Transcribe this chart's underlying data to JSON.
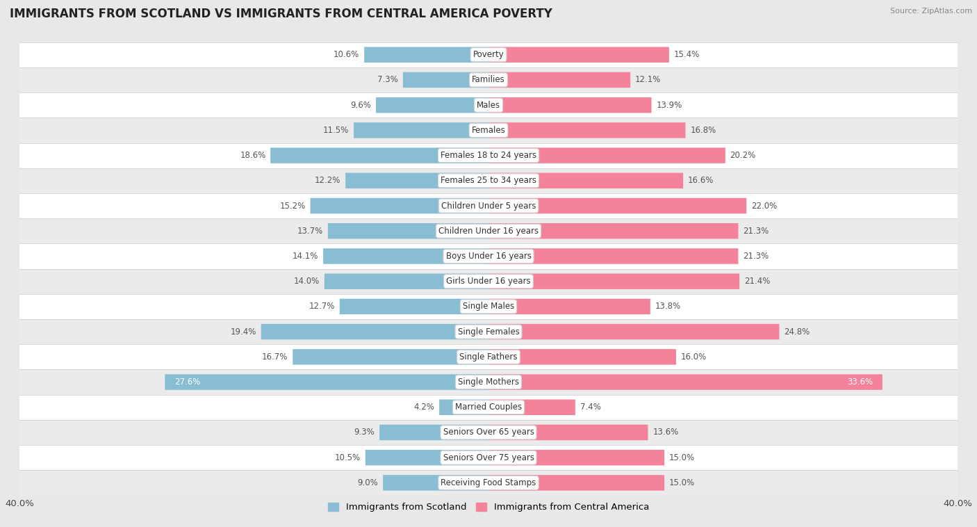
{
  "title": "IMMIGRANTS FROM SCOTLAND VS IMMIGRANTS FROM CENTRAL AMERICA POVERTY",
  "source": "Source: ZipAtlas.com",
  "categories": [
    "Poverty",
    "Families",
    "Males",
    "Females",
    "Females 18 to 24 years",
    "Females 25 to 34 years",
    "Children Under 5 years",
    "Children Under 16 years",
    "Boys Under 16 years",
    "Girls Under 16 years",
    "Single Males",
    "Single Females",
    "Single Fathers",
    "Single Mothers",
    "Married Couples",
    "Seniors Over 65 years",
    "Seniors Over 75 years",
    "Receiving Food Stamps"
  ],
  "scotland_values": [
    10.6,
    7.3,
    9.6,
    11.5,
    18.6,
    12.2,
    15.2,
    13.7,
    14.1,
    14.0,
    12.7,
    19.4,
    16.7,
    27.6,
    4.2,
    9.3,
    10.5,
    9.0
  ],
  "central_america_values": [
    15.4,
    12.1,
    13.9,
    16.8,
    20.2,
    16.6,
    22.0,
    21.3,
    21.3,
    21.4,
    13.8,
    24.8,
    16.0,
    33.6,
    7.4,
    13.6,
    15.0,
    15.0
  ],
  "scotland_color": "#88bdd4",
  "central_america_color": "#f4829b",
  "xlim": 40.0,
  "bg_color": "#e8e8e8",
  "row_colors": [
    "#ffffff",
    "#ebebeb"
  ],
  "label_fontsize": 8.5,
  "value_fontsize": 8.5,
  "title_fontsize": 12,
  "source_fontsize": 8
}
